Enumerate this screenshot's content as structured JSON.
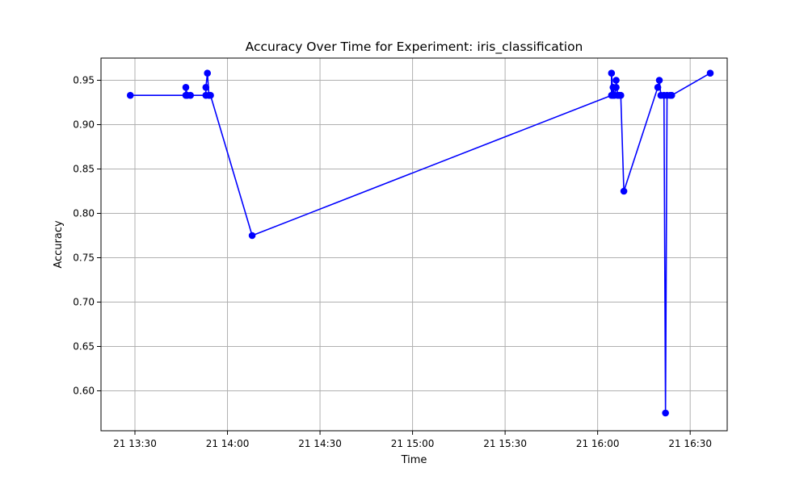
{
  "chart_data": {
    "type": "line",
    "title": "Accuracy Over Time for Experiment: iris_classification",
    "xlabel": "Time",
    "ylabel": "Accuracy",
    "x_unit": "minutes (time of day on the 21st)",
    "xlim": [
      "21 13:19",
      "21 16:42"
    ],
    "ylim": [
      0.555,
      0.975
    ],
    "x_ticks": [
      {
        "value": "21 13:30",
        "label": "21 13:30"
      },
      {
        "value": "21 14:00",
        "label": "21 14:00"
      },
      {
        "value": "21 14:30",
        "label": "21 14:30"
      },
      {
        "value": "21 15:00",
        "label": "21 15:00"
      },
      {
        "value": "21 15:30",
        "label": "21 15:30"
      },
      {
        "value": "21 16:00",
        "label": "21 16:00"
      },
      {
        "value": "21 16:30",
        "label": "21 16:30"
      }
    ],
    "y_ticks": [
      0.6,
      0.65,
      0.7,
      0.75,
      0.8,
      0.85,
      0.9,
      0.95
    ],
    "y_tick_labels": [
      "0.60",
      "0.65",
      "0.70",
      "0.75",
      "0.80",
      "0.85",
      "0.90",
      "0.95"
    ],
    "grid": true,
    "series": [
      {
        "color": "#0000ff",
        "marker": "circle",
        "points": [
          {
            "x": "21 13:28:30",
            "y": 0.933
          },
          {
            "x": "21 13:46:30",
            "y": 0.933
          },
          {
            "x": "21 13:46:30",
            "y": 0.942
          },
          {
            "x": "21 13:47:00",
            "y": 0.933
          },
          {
            "x": "21 13:48:00",
            "y": 0.933
          },
          {
            "x": "21 13:53:00",
            "y": 0.933
          },
          {
            "x": "21 13:53:00",
            "y": 0.942
          },
          {
            "x": "21 13:53:30",
            "y": 0.958
          },
          {
            "x": "21 13:54:00",
            "y": 0.933
          },
          {
            "x": "21 13:54:30",
            "y": 0.933
          },
          {
            "x": "21 14:08:00",
            "y": 0.775
          },
          {
            "x": "21 16:04:30",
            "y": 0.933
          },
          {
            "x": "21 16:04:30",
            "y": 0.958
          },
          {
            "x": "21 16:05:00",
            "y": 0.933
          },
          {
            "x": "21 16:05:00",
            "y": 0.942
          },
          {
            "x": "21 16:05:30",
            "y": 0.933
          },
          {
            "x": "21 16:06:00",
            "y": 0.942
          },
          {
            "x": "21 16:06:00",
            "y": 0.95
          },
          {
            "x": "21 16:06:30",
            "y": 0.933
          },
          {
            "x": "21 16:07:00",
            "y": 0.933
          },
          {
            "x": "21 16:07:30",
            "y": 0.933
          },
          {
            "x": "21 16:08:30",
            "y": 0.825
          },
          {
            "x": "21 16:19:30",
            "y": 0.942
          },
          {
            "x": "21 16:20:00",
            "y": 0.95
          },
          {
            "x": "21 16:20:30",
            "y": 0.933
          },
          {
            "x": "21 16:21:30",
            "y": 0.933
          },
          {
            "x": "21 16:22:00",
            "y": 0.575
          },
          {
            "x": "21 16:22:30",
            "y": 0.933
          },
          {
            "x": "21 16:23:30",
            "y": 0.933
          },
          {
            "x": "21 16:24:00",
            "y": 0.933
          },
          {
            "x": "21 16:36:30",
            "y": 0.958
          }
        ]
      }
    ]
  }
}
